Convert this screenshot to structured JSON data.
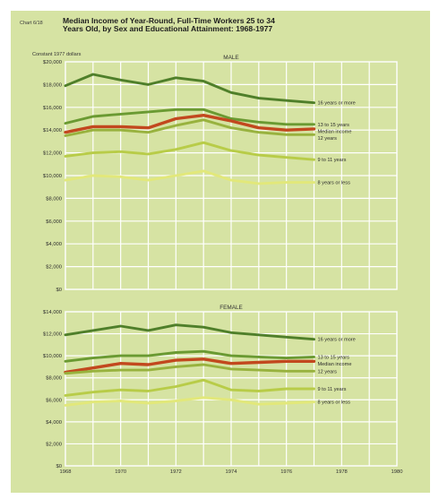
{
  "chart_id": "Chart 6/18",
  "title": "Median Income of Year-Round, Full-Time Workers 25 to 34 Years Old, by Sex and Educational Attainment: 1968-1977",
  "units_note": "Constant 1977 dollars",
  "colors": {
    "background": "#d6e3a3",
    "grid": "#ffffff",
    "college_16_plus": "#4f7f2a",
    "college_13_15": "#6a9a32",
    "median": "#c2481e",
    "hs_12": "#98b23e",
    "hs_9_11": "#b8cc48",
    "elem_8_or_less": "#e2e87a"
  },
  "chart_data": [
    {
      "type": "line",
      "title": "MALE",
      "x": [
        1968,
        1969,
        1970,
        1971,
        1972,
        1973,
        1974,
        1975,
        1976,
        1977
      ],
      "xlim": [
        1968,
        1980
      ],
      "ylim": [
        0,
        20000
      ],
      "y_ticks": [
        "$0",
        "$2,000",
        "$4,000",
        "$6,000",
        "$8,000",
        "$10,000",
        "$12,000",
        "$14,000",
        "$16,000",
        "$18,000",
        "$20,000"
      ],
      "y_tick_values": [
        0,
        2000,
        4000,
        6000,
        8000,
        10000,
        12000,
        14000,
        16000,
        18000,
        20000
      ],
      "grid": true,
      "series": [
        {
          "name": "16 years or more",
          "color": "#4f7f2a",
          "values": [
            17900,
            18900,
            18400,
            18000,
            18600,
            18300,
            17300,
            16800,
            16600,
            16400
          ]
        },
        {
          "name": "13 to 15 years",
          "color": "#6a9a32",
          "values": [
            14600,
            15200,
            15400,
            15600,
            15800,
            15800,
            15000,
            14700,
            14500,
            14500
          ]
        },
        {
          "name": "Median income",
          "color": "#c2481e",
          "values": [
            13800,
            14300,
            14300,
            14200,
            15000,
            15300,
            14800,
            14200,
            14000,
            14100
          ]
        },
        {
          "name": "12 years",
          "color": "#98b23e",
          "values": [
            13500,
            14000,
            14000,
            13800,
            14400,
            14900,
            14200,
            13800,
            13600,
            13600
          ]
        },
        {
          "name": "9 to 11 years",
          "color": "#b8cc48",
          "values": [
            11700,
            12000,
            12100,
            11900,
            12300,
            12900,
            12200,
            11800,
            11600,
            11400
          ]
        },
        {
          "name": "8 years or less",
          "color": "#e2e87a",
          "values": [
            9600,
            10000,
            9900,
            9600,
            10000,
            10400,
            9600,
            9300,
            9400,
            9400
          ]
        }
      ],
      "legend_placement": "right of lines"
    },
    {
      "type": "line",
      "title": "FEMALE",
      "x": [
        1968,
        1969,
        1970,
        1971,
        1972,
        1973,
        1974,
        1975,
        1976,
        1977
      ],
      "xlim": [
        1968,
        1980
      ],
      "ylim": [
        0,
        14000
      ],
      "y_ticks": [
        "$0",
        "$2,000",
        "$4,000",
        "$6,000",
        "$8,000",
        "$10,000",
        "$12,000",
        "$14,000"
      ],
      "y_tick_values": [
        0,
        2000,
        4000,
        6000,
        8000,
        10000,
        12000,
        14000
      ],
      "x_ticks": [
        "1968",
        "1970",
        "1972",
        "1974",
        "1976",
        "1978",
        "1980"
      ],
      "x_tick_values": [
        1968,
        1970,
        1972,
        1974,
        1976,
        1978,
        1980
      ],
      "grid": true,
      "series": [
        {
          "name": "16 years or more",
          "color": "#4f7f2a",
          "values": [
            11900,
            12300,
            12700,
            12300,
            12800,
            12600,
            12100,
            11900,
            11700,
            11500
          ]
        },
        {
          "name": "13 to 15 years",
          "color": "#6a9a32",
          "values": [
            9500,
            9800,
            10000,
            10000,
            10300,
            10400,
            10000,
            9900,
            9800,
            9900
          ]
        },
        {
          "name": "Median income",
          "color": "#c2481e",
          "values": [
            8500,
            8900,
            9300,
            9200,
            9600,
            9700,
            9300,
            9400,
            9500,
            9500
          ]
        },
        {
          "name": "12 years",
          "color": "#98b23e",
          "values": [
            8400,
            8600,
            8700,
            8700,
            9000,
            9200,
            8800,
            8700,
            8600,
            8600
          ]
        },
        {
          "name": "9 to 11 years",
          "color": "#b8cc48",
          "values": [
            6400,
            6700,
            6900,
            6800,
            7200,
            7800,
            6900,
            6800,
            7000,
            7000
          ]
        },
        {
          "name": "8 years or less",
          "color": "#e2e87a",
          "values": [
            5500,
            5800,
            5900,
            5700,
            5900,
            6200,
            6000,
            5600,
            5700,
            5800
          ]
        }
      ],
      "legend_placement": "right of lines"
    }
  ]
}
